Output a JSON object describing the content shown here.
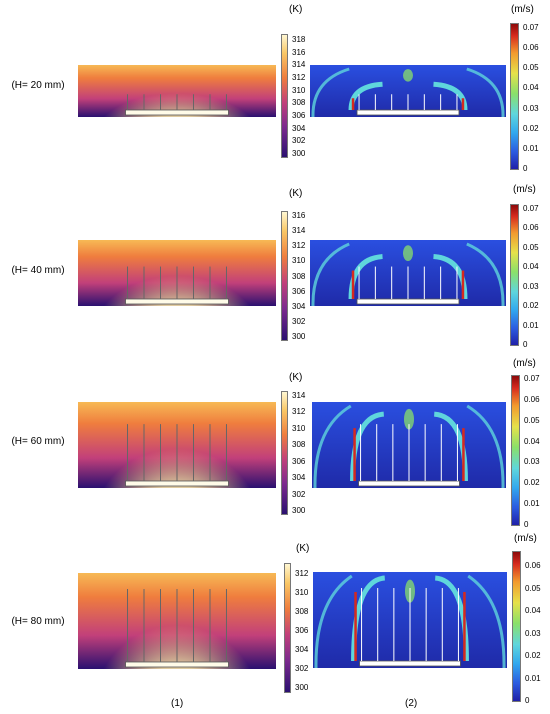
{
  "rows": [
    {
      "label": "(H= 20 mm)",
      "temp_ticks": [
        "318",
        "316",
        "314",
        "312",
        "310",
        "308",
        "306",
        "304",
        "302",
        "300"
      ],
      "vel_ticks": [
        "0.07",
        "0.06",
        "0.05",
        "0.04",
        "0.03",
        "0.02",
        "0.01",
        "0"
      ],
      "fin_height_frac": 0.35
    },
    {
      "label": "(H= 40 mm)",
      "temp_ticks": [
        "316",
        "314",
        "312",
        "310",
        "308",
        "306",
        "304",
        "302",
        "300"
      ],
      "vel_ticks": [
        "0.07",
        "0.06",
        "0.05",
        "0.04",
        "0.03",
        "0.02",
        "0.01",
        "0"
      ],
      "fin_height_frac": 0.55
    },
    {
      "label": "(H= 60 mm)",
      "temp_ticks": [
        "314",
        "312",
        "310",
        "308",
        "306",
        "304",
        "302",
        "300"
      ],
      "vel_ticks": [
        "0.07",
        "0.06",
        "0.05",
        "0.04",
        "0.03",
        "0.02",
        "0.01",
        "0"
      ],
      "fin_height_frac": 0.72
    },
    {
      "label": "(H= 80 mm)",
      "temp_ticks": [
        "312",
        "310",
        "308",
        "306",
        "304",
        "302",
        "300"
      ],
      "vel_ticks": [
        "0.06",
        "0.05",
        "0.04",
        "0.03",
        "0.02",
        "0.01",
        "0"
      ],
      "fin_height_frac": 0.82
    }
  ],
  "temp_unit": "(K)",
  "vel_unit": "(m/s)",
  "col_labels": [
    "(1)",
    "(2)"
  ],
  "colors": {
    "temp_cold": "#2a1070",
    "temp_mid": "#c2407a",
    "temp_warm": "#ef7d3e",
    "temp_hot": "#fff7d2",
    "vel_low": "#2020a8",
    "vel_mid": "#5fd6dc",
    "vel_high": "#d62a1e"
  }
}
